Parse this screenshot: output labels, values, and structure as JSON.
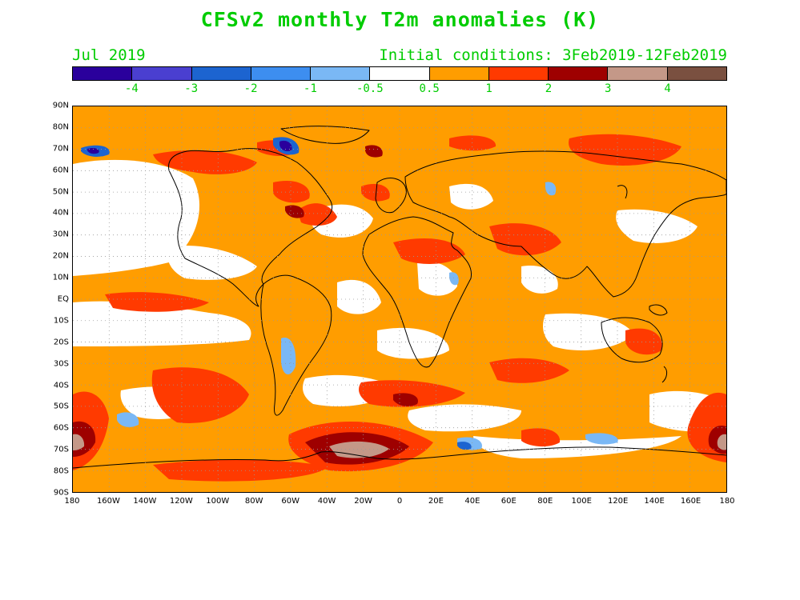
{
  "title": "CFSv2 monthly T2m anomalies (K)",
  "subtitle_left": "Jul 2019",
  "subtitle_right": "Initial conditions: 3Feb2019-12Feb2019",
  "text_color": "#00cc00",
  "colorbar": {
    "colors": [
      "#2a009c",
      "#4a3fd0",
      "#1c64d0",
      "#3d8ef0",
      "#7ab8f5",
      "#ffffff",
      "#ff9d00",
      "#ff3a00",
      "#9e0000",
      "#c49888",
      "#7a5040"
    ],
    "ticks": [
      "-4",
      "-3",
      "-2",
      "-1",
      "-0.5",
      "0.5",
      "1",
      "2",
      "3",
      "4"
    ]
  },
  "lat_labels": [
    "90N",
    "80N",
    "70N",
    "60N",
    "50N",
    "40N",
    "30N",
    "20N",
    "10N",
    "EQ",
    "10S",
    "20S",
    "30S",
    "40S",
    "50S",
    "60S",
    "70S",
    "80S",
    "90S"
  ],
  "lon_labels": [
    "180",
    "160W",
    "140W",
    "120W",
    "100W",
    "80W",
    "60W",
    "40W",
    "20W",
    "0",
    "20E",
    "40E",
    "60E",
    "80E",
    "100E",
    "120E",
    "140E",
    "160E",
    "180"
  ]
}
